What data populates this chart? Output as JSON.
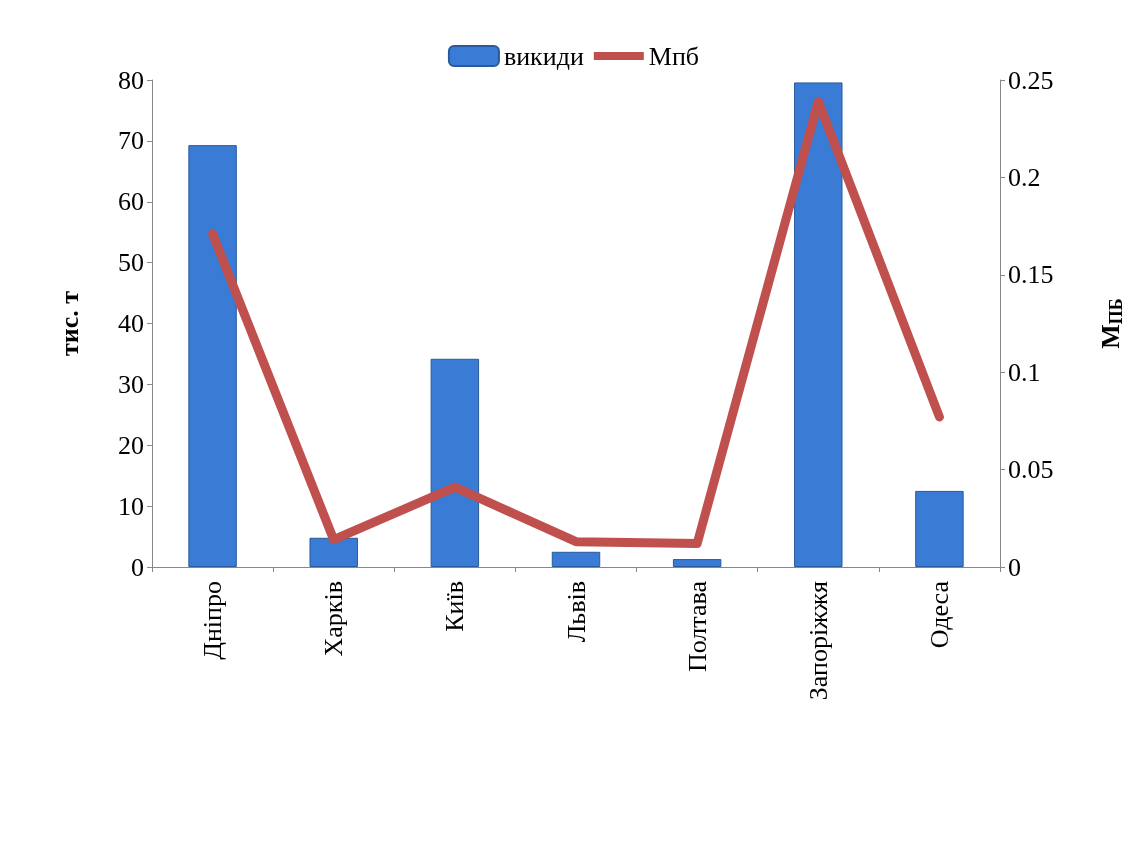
{
  "chart_data": {
    "type": "bar",
    "ylabel": "тис. т",
    "y2label": "M$_{ПБ}$",
    "categories": [
      "Дніпро",
      "Харків",
      "Київ",
      "Львів",
      "Полтава",
      "Запоріжжя",
      "Одеса"
    ],
    "series": [
      {
        "name": "викиди",
        "color": "#3a7bd5",
        "values": [
          69.3,
          4.8,
          34.2,
          2.5,
          1.3,
          79.6,
          12.5
        ]
      },
      {
        "name": "Мпб",
        "type": "line",
        "axis": "y2",
        "color": "#c0504d",
        "marker": "none",
        "values": [
          0.171,
          0.014,
          0.041,
          0.013,
          0.012,
          0.239,
          0.077
        ]
      }
    ],
    "ylim": [
      0,
      80
    ],
    "yticks": [
      0,
      10,
      20,
      30,
      40,
      50,
      60,
      70,
      80
    ],
    "y2lim": [
      0,
      0.25
    ],
    "y2ticks": [
      0,
      0.05,
      0.1,
      0.15,
      0.2,
      0.25
    ],
    "legend": "top",
    "grid": false
  }
}
